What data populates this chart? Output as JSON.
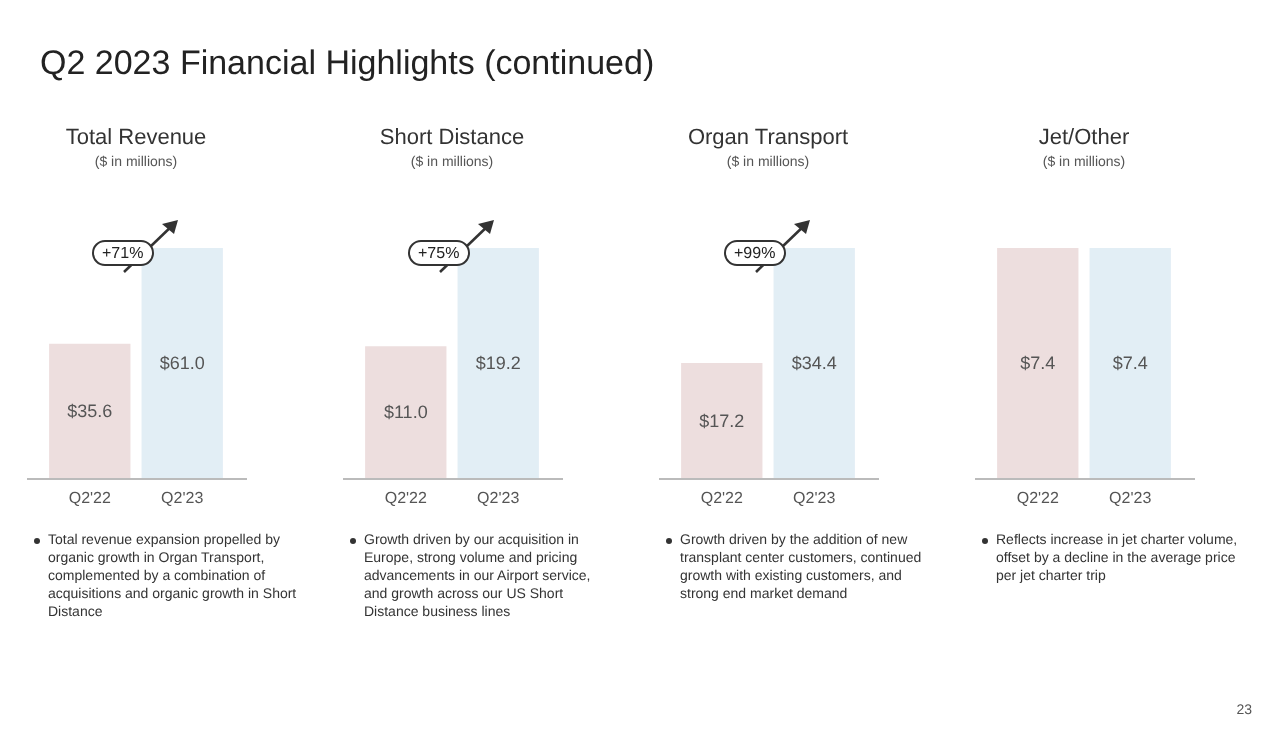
{
  "chart_data": [
    {
      "type": "bar",
      "title": "Total Revenue",
      "subtitle": "($ in millions)",
      "categories": [
        "Q2'22",
        "Q2'23"
      ],
      "values": [
        35.6,
        61.0
      ],
      "colors": [
        "#eddede",
        "#e2eef5"
      ],
      "value_labels": [
        "$35.6",
        "$61.0"
      ],
      "annotations": [
        "Q2 2023 Financial Highlights (continued)",
        "+71%",
        "Total revenue expansion propelled by organic growth in Organ Transport, complemented by a combination of acquisitions and organic growth in Short Distance"
      ]
    },
    {
      "type": "bar",
      "title": "Short Distance",
      "subtitle": "($ in millions)",
      "categories": [
        "Q2'22",
        "Q2'23"
      ],
      "values": [
        11.0,
        19.2
      ],
      "colors": [
        "#eddede",
        "#e2eef5"
      ],
      "value_labels": [
        "$11.0",
        "$19.2"
      ],
      "annotations": [
        "+75%",
        "Growth driven by our acquisition in Europe, strong volume and pricing advancements in our Airport service, and growth across our US Short Distance business lines"
      ]
    },
    {
      "type": "bar",
      "title": "Organ Transport",
      "subtitle": "($ in millions)",
      "categories": [
        "Q2'22",
        "Q2'23"
      ],
      "values": [
        17.2,
        34.4
      ],
      "colors": [
        "#eddede",
        "#e2eef5"
      ],
      "value_labels": [
        "$17.2",
        "$34.4"
      ],
      "annotations": [
        "+99%",
        "Growth driven by the addition of new transplant center customers, continued growth with existing customers, and strong end market demand"
      ]
    },
    {
      "type": "bar",
      "title": "Jet/Other",
      "subtitle": "($ in millions)",
      "categories": [
        "Q2'22",
        "Q2'23"
      ],
      "values": [
        7.4,
        7.4
      ],
      "colors": [
        "#eddede",
        "#e2eef5"
      ],
      "value_labels": [
        "$7.4",
        "$7.4"
      ],
      "annotations": [
        "Reflects increase in jet charter volume, offset by a decline in the average price per jet charter trip",
        "23"
      ]
    }
  ]
}
